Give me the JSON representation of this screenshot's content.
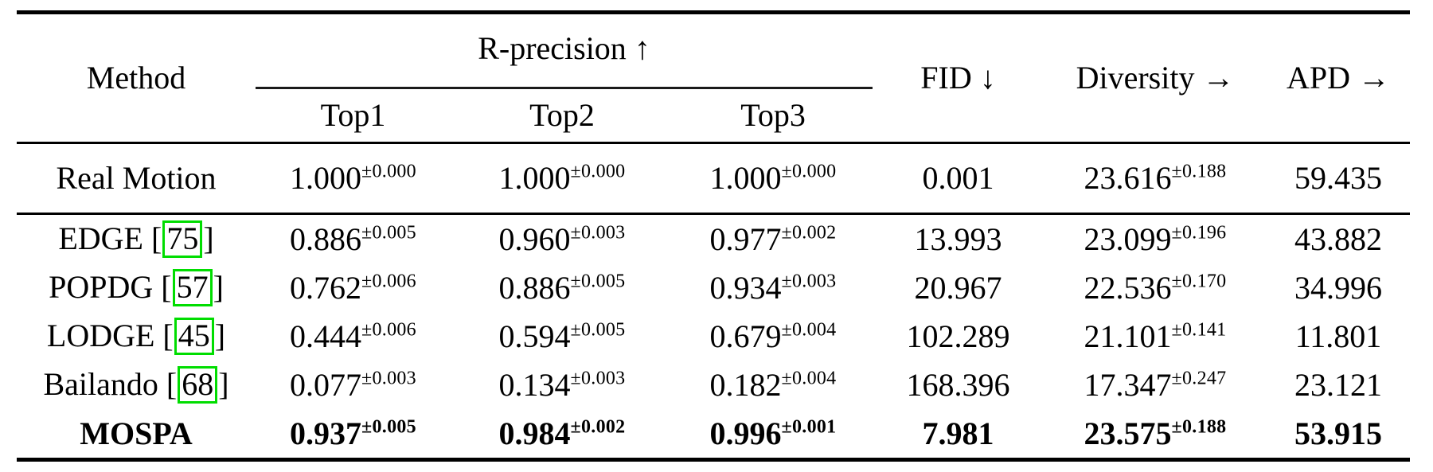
{
  "table": {
    "headers": {
      "method": "Method",
      "r_precision": "R-precision ↑",
      "top1": "Top1",
      "top2": "Top2",
      "top3": "Top3",
      "fid": "FID ↓",
      "diversity": "Diversity →",
      "apd": "APD →"
    },
    "rows": [
      {
        "group": "reference",
        "bold": false,
        "method": "Real Motion",
        "cite": null,
        "top1": {
          "value": "1.000",
          "pm": "±0.000"
        },
        "top2": {
          "value": "1.000",
          "pm": "±0.000"
        },
        "top3": {
          "value": "1.000",
          "pm": "±0.000"
        },
        "fid": "0.001",
        "diversity": {
          "value": "23.616",
          "pm": "±0.188"
        },
        "apd": "59.435"
      },
      {
        "group": "methods",
        "bold": false,
        "method": "EDGE",
        "cite": "75",
        "top1": {
          "value": "0.886",
          "pm": "±0.005"
        },
        "top2": {
          "value": "0.960",
          "pm": "±0.003"
        },
        "top3": {
          "value": "0.977",
          "pm": "±0.002"
        },
        "fid": "13.993",
        "diversity": {
          "value": "23.099",
          "pm": "±0.196"
        },
        "apd": "43.882"
      },
      {
        "group": "methods",
        "bold": false,
        "method": "POPDG",
        "cite": "57",
        "top1": {
          "value": "0.762",
          "pm": "±0.006"
        },
        "top2": {
          "value": "0.886",
          "pm": "±0.005"
        },
        "top3": {
          "value": "0.934",
          "pm": "±0.003"
        },
        "fid": "20.967",
        "diversity": {
          "value": "22.536",
          "pm": "±0.170"
        },
        "apd": "34.996"
      },
      {
        "group": "methods",
        "bold": false,
        "method": "LODGE",
        "cite": "45",
        "top1": {
          "value": "0.444",
          "pm": "±0.006"
        },
        "top2": {
          "value": "0.594",
          "pm": "±0.005"
        },
        "top3": {
          "value": "0.679",
          "pm": "±0.004"
        },
        "fid": "102.289",
        "diversity": {
          "value": "21.101",
          "pm": "±0.141"
        },
        "apd": "11.801"
      },
      {
        "group": "methods",
        "bold": false,
        "method": "Bailando",
        "cite": "68",
        "top1": {
          "value": "0.077",
          "pm": "±0.003"
        },
        "top2": {
          "value": "0.134",
          "pm": "±0.003"
        },
        "top3": {
          "value": "0.182",
          "pm": "±0.004"
        },
        "fid": "168.396",
        "diversity": {
          "value": "17.347",
          "pm": "±0.247"
        },
        "apd": "23.121"
      },
      {
        "group": "methods",
        "bold": true,
        "method": "MOSPA",
        "cite": null,
        "top1": {
          "value": "0.937",
          "pm": "±0.005"
        },
        "top2": {
          "value": "0.984",
          "pm": "±0.002"
        },
        "top3": {
          "value": "0.996",
          "pm": "±0.001"
        },
        "fid": "7.981",
        "diversity": {
          "value": "23.575",
          "pm": "±0.188"
        },
        "apd": "53.915"
      }
    ]
  },
  "colors": {
    "citation_box": "#00dd00",
    "rule": "#000000",
    "text": "#000000",
    "background": "#ffffff"
  }
}
